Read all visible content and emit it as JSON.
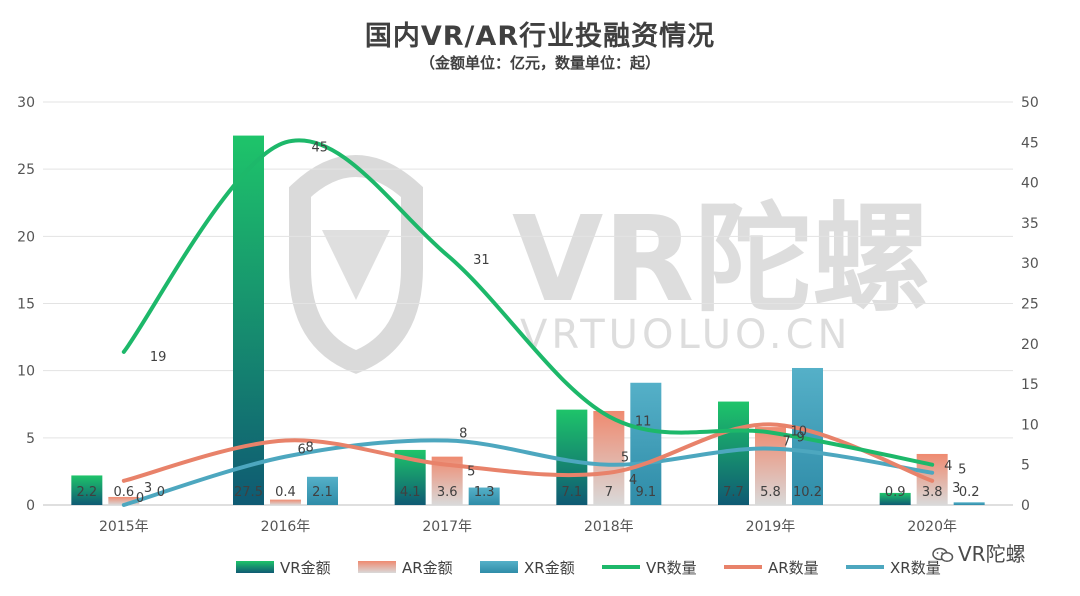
{
  "title": "国内VR/AR行业投融资情况",
  "subtitle": "（金额单位：亿元，数量单位：起）",
  "watermark": {
    "text": "VR陀螺",
    "url": "VRTUOLUO.CN"
  },
  "brand": "VR陀螺",
  "chart_data": {
    "type": "bar",
    "categories": [
      "2015年",
      "2016年",
      "2017年",
      "2018年",
      "2019年",
      "2020年"
    ],
    "y_left": {
      "ylim": [
        0,
        30
      ],
      "ticks": [
        0,
        5,
        10,
        15,
        20,
        25,
        30
      ]
    },
    "y_right": {
      "ylim": [
        0,
        50
      ],
      "ticks": [
        0,
        5,
        10,
        15,
        20,
        25,
        30,
        35,
        40,
        45,
        50
      ]
    },
    "bar_series": [
      {
        "name": "VR金额",
        "axis": "left",
        "values": [
          2.2,
          27.5,
          4.1,
          7.1,
          7.7,
          0.9
        ],
        "labels": [
          "2.2",
          "27.5",
          "4.1",
          "7.1",
          "7.7",
          "0.9"
        ],
        "color": "#1ec46a"
      },
      {
        "name": "AR金额",
        "axis": "left",
        "values": [
          0.6,
          0.4,
          3.6,
          7,
          5.8,
          3.8
        ],
        "labels": [
          "0.6",
          "0.4",
          "3.6",
          "7",
          "5.8",
          "3.8"
        ],
        "color": "#ef8a70"
      },
      {
        "name": "XR金额",
        "axis": "left",
        "values": [
          0,
          2.1,
          1.3,
          9.1,
          10.2,
          0.2
        ],
        "labels": [
          "0",
          "2.1",
          "1.3",
          "9.1",
          "10.2",
          "0.2"
        ],
        "color": "#55b0c8"
      }
    ],
    "line_series": [
      {
        "name": "VR数量",
        "axis": "right",
        "values": [
          19,
          45,
          31,
          11,
          9,
          5
        ],
        "labels": [
          "19",
          "45",
          "31",
          "11",
          "9",
          "5"
        ],
        "color": "#1db86a"
      },
      {
        "name": "AR数量",
        "axis": "right",
        "values": [
          3,
          8,
          5,
          4,
          10,
          3
        ],
        "labels": [
          "3",
          "8",
          "5",
          "4",
          "10",
          "3"
        ],
        "color": "#e8826a"
      },
      {
        "name": "XR数量",
        "axis": "right",
        "values": [
          0,
          6,
          8,
          5,
          7,
          4
        ],
        "labels": [
          "0",
          "6",
          "8",
          "5",
          "7",
          "4"
        ],
        "color": "#4da7bf"
      }
    ],
    "legend_position": "bottom",
    "grid": true
  }
}
